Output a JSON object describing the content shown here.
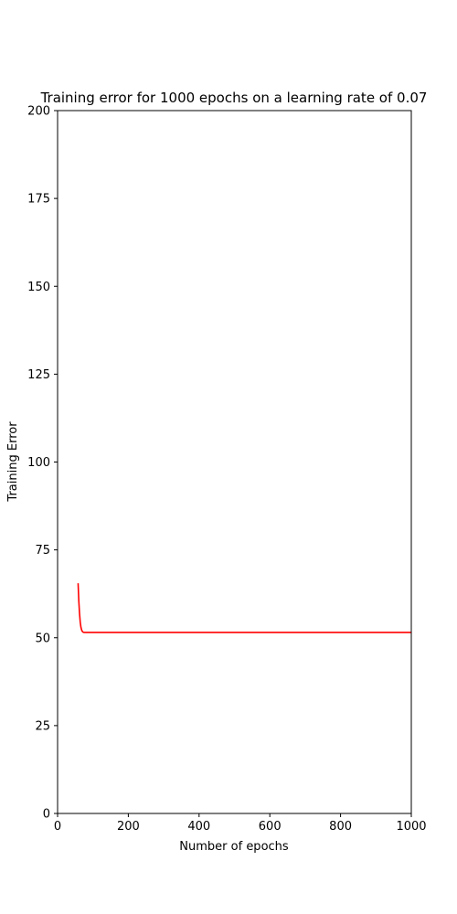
{
  "chart_data": {
    "type": "line",
    "title": "Training error for 1000 epochs on a learning rate of 0.07",
    "xlabel": "Number of epochs",
    "ylabel": "Training Error",
    "xlim": [
      0,
      1000
    ],
    "ylim": [
      0,
      200
    ],
    "xticks": [
      0,
      200,
      400,
      600,
      800,
      1000
    ],
    "yticks": [
      0,
      25,
      50,
      75,
      100,
      125,
      150,
      175,
      200
    ],
    "grid": false,
    "series": [
      {
        "color": "#ff0000",
        "x": [
          58,
          60,
          62,
          64,
          66,
          68,
          70,
          72,
          75,
          80,
          90,
          100,
          200,
          400,
          600,
          800,
          1000
        ],
        "y": [
          65.5,
          60.5,
          57,
          54.5,
          53,
          52.2,
          51.8,
          51.6,
          51.5,
          51.5,
          51.5,
          51.5,
          51.5,
          51.5,
          51.5,
          51.5,
          51.5
        ]
      }
    ]
  }
}
